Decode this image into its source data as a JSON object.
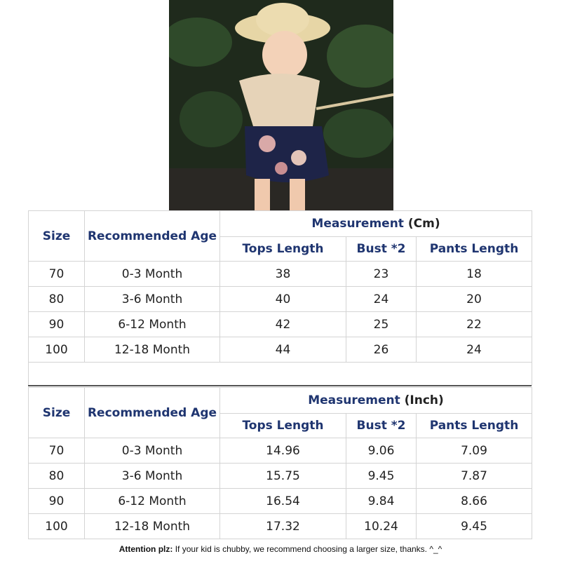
{
  "tables": [
    {
      "headers": {
        "size": "Size",
        "age": "Recommended Age",
        "measurement": "Measurement",
        "unit": "(Cm)",
        "columns": [
          "Tops Length",
          "Bust *2",
          "Pants Length"
        ]
      },
      "rows": [
        [
          "70",
          "0-3 Month",
          "38",
          "23",
          "18"
        ],
        [
          "80",
          "3-6 Month",
          "40",
          "24",
          "20"
        ],
        [
          "90",
          "6-12 Month",
          "42",
          "25",
          "22"
        ],
        [
          "100",
          "12-18 Month",
          "44",
          "26",
          "24"
        ]
      ]
    },
    {
      "headers": {
        "size": "Size",
        "age": "Recommended Age",
        "measurement": "Measurement",
        "unit": "(Inch)",
        "columns": [
          "Tops Length",
          "Bust *2",
          "Pants Length"
        ]
      },
      "rows": [
        [
          "70",
          "0-3 Month",
          "14.96",
          "9.06",
          "7.09"
        ],
        [
          "80",
          "3-6 Month",
          "15.75",
          "9.45",
          "7.87"
        ],
        [
          "90",
          "6-12 Month",
          "16.54",
          "9.84",
          "8.66"
        ],
        [
          "100",
          "12-18 Month",
          "17.32",
          "10.24",
          "9.45"
        ]
      ]
    }
  ],
  "note": {
    "label": "Attention plz:",
    "text": "If your kid is chubby, we recommend choosing a larger size, thanks. ^_^"
  }
}
